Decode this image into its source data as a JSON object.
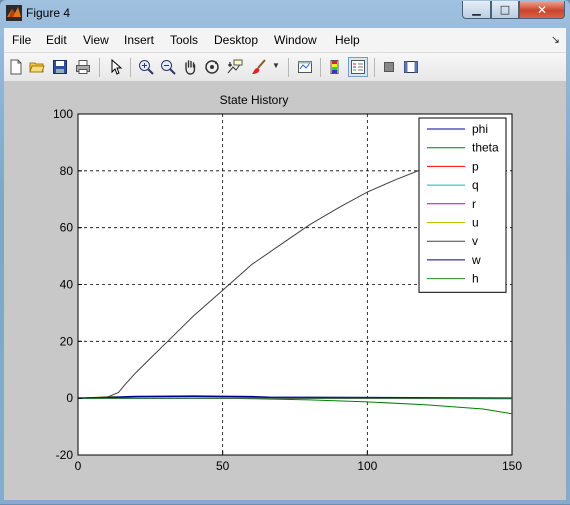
{
  "window": {
    "title": "Figure 4"
  },
  "menubar": {
    "items": [
      "File",
      "Edit",
      "View",
      "Insert",
      "Tools",
      "Desktop",
      "Window",
      "Help"
    ]
  },
  "toolbar": {
    "buttons": [
      "new-file-icon",
      "open-folder-icon",
      "save-icon",
      "print-icon",
      "pointer-icon",
      "zoom-in-icon",
      "zoom-out-icon",
      "pan-hand-icon",
      "rotate-3d-icon",
      "data-cursor-icon",
      "brush-icon",
      "link-plot-icon",
      "colorbar-icon",
      "legend-icon",
      "hide-plot-tools-icon",
      "show-plot-tools-icon"
    ]
  },
  "chart_data": {
    "type": "line",
    "title": "State History",
    "xlabel": "",
    "ylabel": "",
    "xlim": [
      0,
      150
    ],
    "ylim": [
      -20,
      100
    ],
    "xticks": [
      0,
      50,
      100,
      150
    ],
    "yticks": [
      -20,
      0,
      20,
      40,
      60,
      80,
      100
    ],
    "grid": true,
    "legend_position": "top-right",
    "series": [
      {
        "name": "phi",
        "color": "#0000aa",
        "x": [
          0,
          150
        ],
        "y": [
          0,
          0
        ]
      },
      {
        "name": "theta",
        "color": "#008000",
        "x": [
          0,
          10,
          50,
          60,
          80,
          100,
          120,
          140,
          150
        ],
        "y": [
          0,
          0,
          0,
          -0.2,
          -0.6,
          -1.3,
          -2.3,
          -3.8,
          -5.5
        ]
      },
      {
        "name": "p",
        "color": "#ff0000",
        "x": [
          0,
          10,
          20,
          150
        ],
        "y": [
          0,
          0.3,
          0,
          0
        ]
      },
      {
        "name": "q",
        "color": "#00bfbf",
        "x": [
          0,
          150
        ],
        "y": [
          0,
          0
        ]
      },
      {
        "name": "r",
        "color": "#bf00bf",
        "x": [
          0,
          145,
          150
        ],
        "y": [
          0,
          -0.2,
          -0.2
        ]
      },
      {
        "name": "u",
        "color": "#bfbf00",
        "x": [
          0,
          8,
          12,
          18,
          150
        ],
        "y": [
          0,
          0.4,
          0.6,
          0.2,
          0
        ]
      },
      {
        "name": "v",
        "color": "#404040",
        "x": [
          0,
          10,
          14,
          16,
          20,
          25,
          30,
          40,
          50,
          60,
          70,
          80,
          90,
          100,
          110,
          120,
          130
        ],
        "y": [
          0,
          0.3,
          2,
          4.5,
          9,
          14,
          19,
          29,
          38,
          47,
          54,
          61,
          67,
          72.5,
          77,
          81,
          84.5
        ]
      },
      {
        "name": "w",
        "color": "#00008b",
        "x": [
          0,
          10,
          20,
          40,
          60,
          66,
          150
        ],
        "y": [
          0,
          0.2,
          0.6,
          0.7,
          0.5,
          0.3,
          0
        ]
      },
      {
        "name": "h",
        "color": "#228b22",
        "x": [
          0,
          150
        ],
        "y": [
          0,
          0
        ]
      }
    ]
  }
}
